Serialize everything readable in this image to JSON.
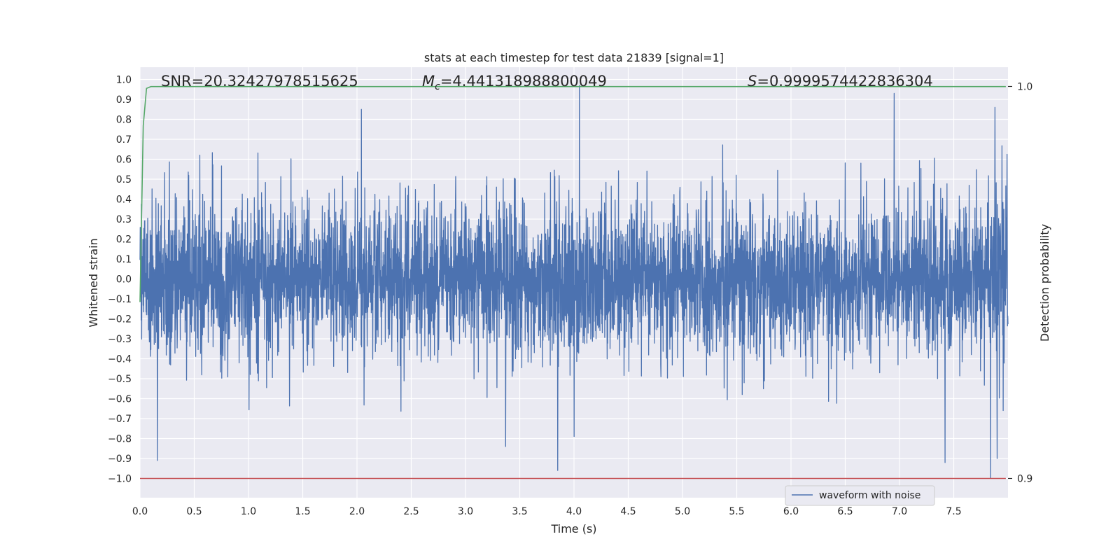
{
  "chart_data": {
    "type": "line",
    "title": "stats at each timestep for test data 21839 [signal=1]",
    "xlabel": "Time (s)",
    "ylabel": "Whitened strain",
    "y2label": "Detection probability",
    "xlim": [
      0.0,
      8.0
    ],
    "ylim": [
      -1.1,
      1.1
    ],
    "y2lim": [
      0.895,
      1.0023
    ],
    "x_ticks": [
      "0.0",
      "0.5",
      "1.0",
      "1.5",
      "2.0",
      "2.5",
      "3.0",
      "3.5",
      "4.0",
      "4.5",
      "5.0",
      "5.5",
      "6.0",
      "6.5",
      "7.0",
      "7.5"
    ],
    "y_ticks": [
      "1.0",
      "0.9",
      "0.8",
      "0.7",
      "0.6",
      "0.5",
      "0.4",
      "0.3",
      "0.2",
      "0.1",
      "0.0",
      "−0.1",
      "−0.2",
      "−0.3",
      "−0.4",
      "−0.5",
      "−0.6",
      "−0.7",
      "−0.8",
      "−0.9",
      "−1.0"
    ],
    "y2_ticks": [
      "1.0",
      "0.9"
    ],
    "annotations": {
      "snr": "SNR=20.32427978515625",
      "mc_symbol": "M",
      "mc_sub": "c",
      "mc_value": "=4.441318988800049",
      "s_symbol": "S",
      "s_value": "=0.9999574422836304"
    },
    "grid": true,
    "legend_position": "lower-right",
    "series": [
      {
        "name": "waveform with noise",
        "color": "#4c72b0",
        "kind": "noisy-waveform",
        "x_range": [
          0.0,
          8.0
        ],
        "amplitude_envelope": [
          0.45,
          0.5
        ],
        "typical_max": 0.75,
        "typical_min": -0.75,
        "peaks": [
          {
            "x": 2.04,
            "y": 0.85
          },
          {
            "x": 4.05,
            "y": 0.97
          },
          {
            "x": 6.95,
            "y": 0.93
          },
          {
            "x": 7.88,
            "y": 0.86
          },
          {
            "x": 0.16,
            "y": -0.91
          },
          {
            "x": 3.85,
            "y": -0.96
          },
          {
            "x": 4.0,
            "y": -0.79
          },
          {
            "x": 3.37,
            "y": -0.84
          },
          {
            "x": 7.42,
            "y": -0.92
          },
          {
            "x": 7.84,
            "y": -1.0
          },
          {
            "x": 7.9,
            "y": -0.9
          }
        ]
      },
      {
        "name": "",
        "color": "#55a868",
        "axis": "y2",
        "x": [
          0.0,
          0.03,
          0.06,
          0.1,
          7.98
        ],
        "y": [
          0.945,
          0.99,
          0.9995,
          0.99996,
          0.99996
        ]
      },
      {
        "name": "",
        "color": "#c44e52",
        "axis": "y2",
        "x": [
          0.0,
          7.98
        ],
        "y": [
          0.9,
          0.9
        ]
      }
    ]
  }
}
